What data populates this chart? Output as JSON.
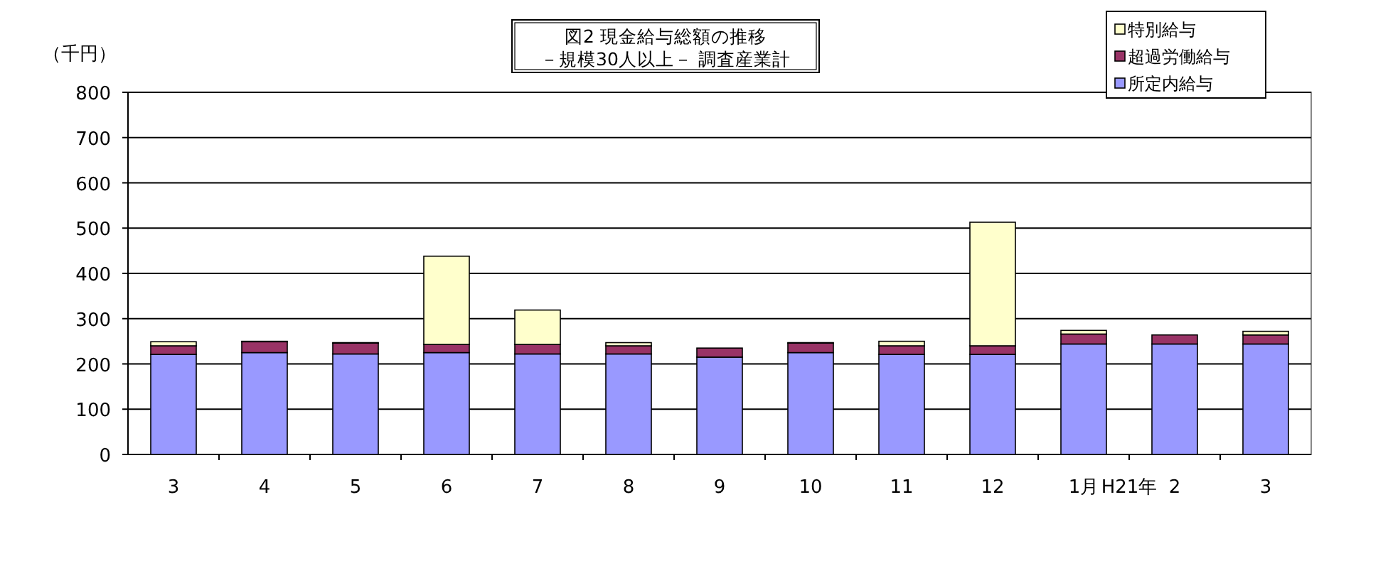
{
  "chart_data": {
    "type": "bar",
    "title": "図2 現金給与総額の推移",
    "subtitle": "－規模30人以上－ 調査産業計",
    "ylabel": "（千円）",
    "annotations": [
      "H21年"
    ],
    "categories": [
      "3",
      "4",
      "5",
      "6",
      "7",
      "8",
      "9",
      "10",
      "11",
      "12",
      "1月",
      "2",
      "3"
    ],
    "stacked": true,
    "ylim": [
      0,
      800
    ],
    "yticks": [
      0,
      100,
      200,
      300,
      400,
      500,
      600,
      700,
      800
    ],
    "grid": "y",
    "legend": "top right",
    "series": [
      {
        "name": "所定内給与",
        "color": "#9999ff",
        "values": [
          221,
          225,
          222,
          225,
          222,
          222,
          215,
          225,
          221,
          221,
          244,
          244,
          244
        ]
      },
      {
        "name": "超過労働給与",
        "color": "#993366",
        "values": [
          19,
          24,
          24,
          18,
          21,
          18,
          20,
          21,
          19,
          19,
          22,
          20,
          20
        ]
      },
      {
        "name": "特別給与",
        "color": "#ffffcc",
        "values": [
          9,
          1,
          1,
          195,
          76,
          7,
          0,
          1,
          10,
          273,
          8,
          0,
          8
        ]
      }
    ]
  }
}
